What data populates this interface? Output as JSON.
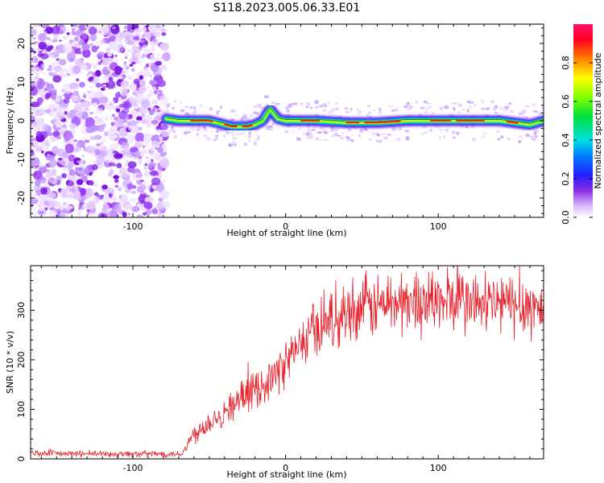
{
  "title": "S118.2023.005.06.33.E01",
  "chart_data": [
    {
      "type": "heatmap",
      "xlabel": "Height of straight line (km)",
      "ylabel": "Frequency (Hz)",
      "xlim": [
        -167,
        169
      ],
      "ylim": [
        -25,
        25
      ],
      "xticks": [
        -100,
        0,
        100
      ],
      "yticks": [
        -20,
        -10,
        0,
        10,
        20
      ],
      "colorbar": {
        "label": "Normalized spectral amplitude",
        "range": [
          0,
          1
        ],
        "ticks": [
          0.0,
          0.2,
          0.4,
          0.6,
          0.8
        ],
        "tick_labels": [
          "0.0",
          "0.2",
          "0.4",
          "0.6",
          "0.8"
        ]
      },
      "ridge": {
        "x": [
          -78,
          -70,
          -60,
          -50,
          -40,
          -35,
          -30,
          -25,
          -20,
          -15,
          -12,
          -10,
          -8,
          -5,
          0,
          10,
          20,
          40,
          60,
          80,
          100,
          120,
          140,
          160,
          169
        ],
        "y": [
          0.5,
          0,
          0,
          0,
          -1,
          -1.5,
          -1.5,
          -1.5,
          -1,
          0,
          2,
          3,
          2,
          0.5,
          0,
          0,
          0,
          -0.5,
          -0.5,
          0,
          0,
          0,
          0,
          -1,
          0
        ]
      },
      "noise_region_x": [
        -167,
        -78
      ]
    },
    {
      "type": "line",
      "xlabel": "Height of straight line (km)",
      "ylabel": "SNR (10 * v/v)",
      "xlim": [
        -167,
        169
      ],
      "ylim": [
        0,
        390
      ],
      "xticks": [
        -100,
        0,
        100
      ],
      "yticks": [
        0,
        100,
        200,
        300
      ],
      "series": [
        {
          "color": "#e8202a",
          "x": [
            -167,
            -140,
            -120,
            -100,
            -80,
            -68,
            -64,
            -60,
            -50,
            -40,
            -30,
            -20,
            -10,
            -5,
            0,
            10,
            20,
            30,
            40,
            50,
            60,
            70,
            80,
            90,
            100,
            110,
            120,
            130,
            140,
            150,
            160,
            169
          ],
          "y": [
            12,
            10,
            10,
            10,
            10,
            10,
            30,
            50,
            75,
            95,
            120,
            140,
            160,
            175,
            195,
            230,
            265,
            285,
            300,
            305,
            310,
            315,
            315,
            320,
            315,
            320,
            315,
            310,
            315,
            310,
            310,
            300
          ]
        }
      ]
    }
  ]
}
